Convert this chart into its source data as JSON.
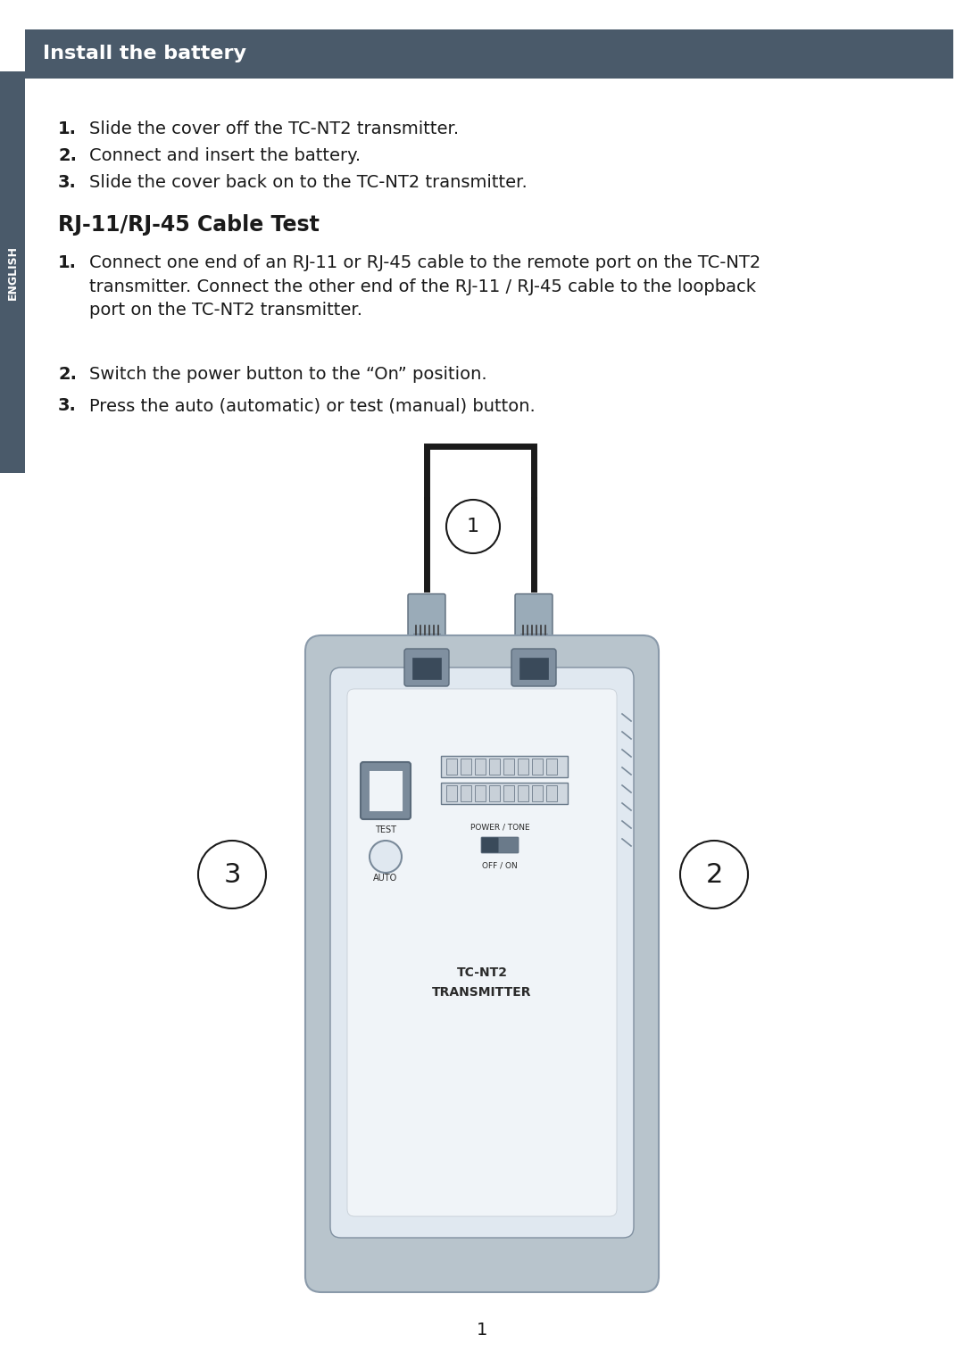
{
  "bg_color": "#ffffff",
  "page_width": 10.8,
  "page_height": 15.24,
  "sidebar_color": "#4a5a6a",
  "sidebar_text": "ENGLISH",
  "header_bg": "#4a5a6a",
  "header_text": "Install the battery",
  "install_steps": [
    "Slide the cover off the TC-NT2 transmitter.",
    "Connect and insert the battery.",
    "Slide the cover back on to the TC-NT2 transmitter."
  ],
  "rj_title": "RJ-11/RJ-45 Cable Test",
  "rj_steps": [
    "Connect one end of an RJ-11 or RJ-45 cable to the remote port on the TC-NT2\ntransmitter. Connect the other end of the RJ-11 / RJ-45 cable to the loopback\nport on the TC-NT2 transmitter.",
    "Switch the power button to the “On” position.",
    "Press the auto (automatic) or test (manual) button."
  ],
  "footer_text": "1",
  "device_body_color": "#b0bcc8",
  "device_face_color": "#e8ecf0",
  "device_inner_color": "#f0f4f8",
  "device_dark": "#6a7a8a",
  "connector_color": "#8a9aaa",
  "label1": "1",
  "label2": "2",
  "label3": "3"
}
